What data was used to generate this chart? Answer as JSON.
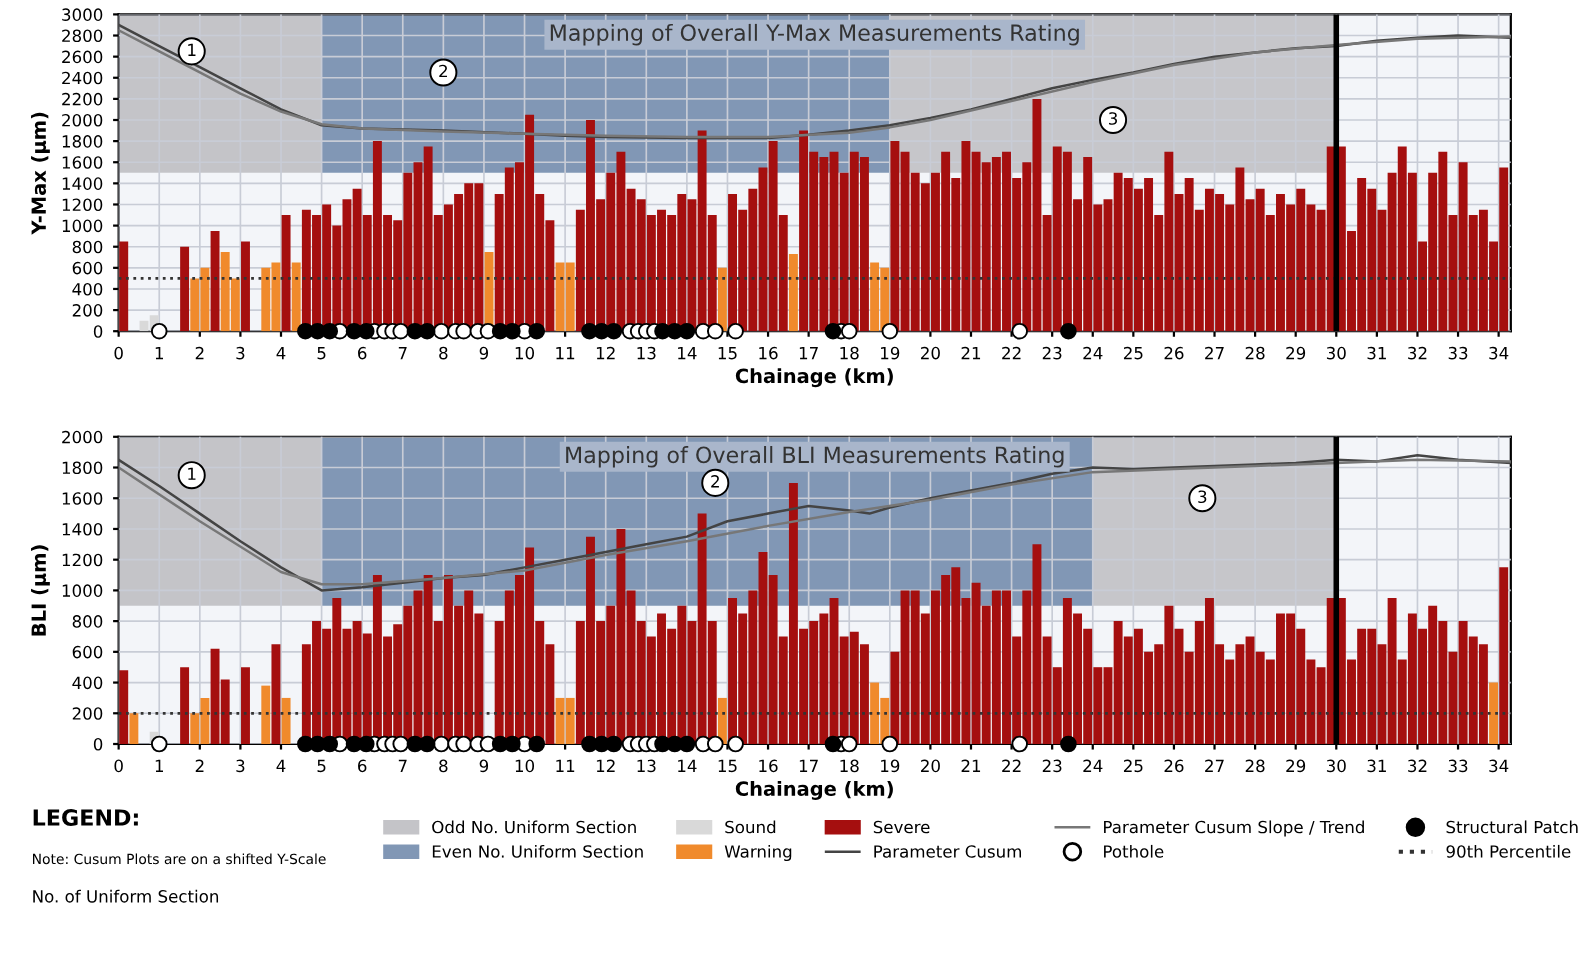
{
  "chart_data": [
    {
      "type": "bar",
      "title": "Mapping of Overall Y-Max Measurements Rating",
      "xlabel": "Chainage (km)",
      "ylabel": "Y-Max (µm)",
      "xlim": [
        0,
        34.3
      ],
      "xticks": [
        0,
        1,
        2,
        3,
        4,
        5,
        6,
        7,
        8,
        9,
        10,
        11,
        12,
        13,
        14,
        15,
        16,
        17,
        18,
        19,
        20,
        21,
        22,
        23,
        24,
        25,
        26,
        27,
        28,
        29,
        30,
        31,
        32,
        33,
        34
      ],
      "ylim": [
        0,
        3000
      ],
      "yticks": [
        0,
        200,
        400,
        600,
        800,
        1000,
        1200,
        1400,
        1600,
        1800,
        2000,
        2200,
        2400,
        2600,
        2800,
        3000
      ],
      "grid": true,
      "bands": [
        {
          "axis": "x",
          "from": 0,
          "to": 5,
          "color": "#c4c4c8"
        },
        {
          "axis": "x",
          "from": 5,
          "to": 19,
          "color": "#8197b5"
        },
        {
          "axis": "x",
          "from": 19,
          "to": 30,
          "color": "#c6c6ca"
        }
      ],
      "ref_lines": [
        {
          "axis": "y",
          "value": 500,
          "color": "#333333",
          "line_style": "dotted"
        },
        {
          "axis": "x",
          "value": 30,
          "color": "#000000"
        }
      ],
      "annotations": [
        {
          "text": "1",
          "x": 1.8,
          "y": 2650
        },
        {
          "text": "2",
          "x": 8,
          "y": 2450
        },
        {
          "text": "3",
          "x": 24.5,
          "y": 2000
        }
      ],
      "series": [
        {
          "color": "#d9d9d9",
          "x": [
            0.625,
            0.875
          ],
          "values": [
            100,
            150
          ]
        },
        {
          "color": "#f08a2c",
          "x": [
            1.875,
            2.125,
            2.625,
            2.875,
            3.625,
            3.875,
            4.375,
            9.125,
            10.875,
            11.125,
            14.875,
            16.625,
            18.625,
            18.875
          ],
          "values": [
            500,
            600,
            750,
            500,
            600,
            650,
            650,
            750,
            650,
            650,
            600,
            730,
            650,
            600
          ]
        },
        {
          "color": "#a50f0f",
          "x": [
            0.125,
            1.625,
            2.375,
            3.125,
            4.125,
            4.625,
            4.875,
            5.125,
            5.375,
            5.625,
            5.875,
            6.125,
            6.375,
            6.625,
            6.875,
            7.125,
            7.375,
            7.625,
            7.875,
            8.125,
            8.375,
            8.625,
            8.875,
            9.375,
            9.625,
            9.875,
            10.125,
            10.375,
            10.625,
            11.375,
            11.625,
            11.875,
            12.125,
            12.375,
            12.625,
            12.875,
            13.125,
            13.375,
            13.625,
            13.875,
            14.125,
            14.375,
            14.625,
            15.125,
            15.375,
            15.625,
            15.875,
            16.125,
            16.375,
            16.875,
            17.125,
            17.375,
            17.625,
            17.875,
            18.125,
            18.375,
            19.125,
            19.375,
            19.625,
            19.875,
            20.125,
            20.375,
            20.625,
            20.875,
            21.125,
            21.375,
            21.625,
            21.875,
            22.125,
            22.375,
            22.625,
            22.875,
            23.125,
            23.375,
            23.625,
            23.875,
            24.125,
            24.375,
            24.625,
            24.875,
            25.125,
            25.375,
            25.625,
            25.875,
            26.125,
            26.375,
            26.625,
            26.875,
            27.125,
            27.375,
            27.625,
            27.875,
            28.125,
            28.375,
            28.625,
            28.875,
            29.125,
            29.375,
            29.625,
            29.875,
            30.125,
            30.375,
            30.625,
            30.875,
            31.125,
            31.375,
            31.625,
            31.875,
            32.125,
            32.375,
            32.625,
            32.875,
            33.125,
            33.375,
            33.625,
            33.875,
            34.125
          ],
          "values": [
            850,
            800,
            950,
            850,
            1100,
            1150,
            1100,
            1200,
            1000,
            1250,
            1350,
            1100,
            1800,
            1100,
            1050,
            1500,
            1600,
            1750,
            1100,
            1200,
            1300,
            1400,
            1400,
            1300,
            1550,
            1600,
            2050,
            1300,
            1050,
            1150,
            2000,
            1250,
            1500,
            1700,
            1350,
            1250,
            1100,
            1150,
            1100,
            1300,
            1250,
            1900,
            1100,
            1300,
            1150,
            1350,
            1550,
            1800,
            1100,
            1900,
            1700,
            1650,
            1700,
            1500,
            1700,
            1650,
            1800,
            1700,
            1500,
            1400,
            1500,
            1700,
            1450,
            1800,
            1700,
            1600,
            1650,
            1700,
            1450,
            1600,
            2200,
            1100,
            1750,
            1700,
            1250,
            1650,
            1200,
            1250,
            1500,
            1450,
            1350,
            1450,
            1100,
            1700,
            1300,
            1450,
            1150,
            1350,
            1300,
            1200,
            1550,
            1250,
            1350,
            1100,
            1300,
            1200,
            1350,
            1200,
            1150,
            1750,
            1750,
            950,
            1450,
            1350,
            1150,
            1500,
            1750,
            1500,
            850,
            1500,
            1700,
            1100,
            1600,
            1100,
            1150,
            850,
            1550
          ]
        },
        {
          "type": "line",
          "color": "#444444",
          "x": [
            0,
            1,
            2,
            3,
            4,
            5,
            6,
            8,
            10,
            11,
            12,
            14,
            16,
            17,
            18,
            19,
            20,
            21,
            22,
            23,
            24,
            25,
            26,
            27,
            28,
            29,
            30,
            31,
            32,
            33,
            34.3
          ],
          "values": [
            2900,
            2700,
            2500,
            2300,
            2100,
            1950,
            1920,
            1900,
            1870,
            1850,
            1840,
            1830,
            1830,
            1860,
            1900,
            1950,
            2020,
            2100,
            2200,
            2300,
            2380,
            2450,
            2530,
            2600,
            2640,
            2680,
            2700,
            2750,
            2780,
            2800,
            2780
          ]
        },
        {
          "type": "line",
          "color": "#777777",
          "x": [
            0,
            1,
            2,
            3,
            4,
            5,
            6,
            8,
            10,
            12,
            14,
            16,
            18,
            19,
            20,
            22,
            24,
            26,
            28,
            30,
            32,
            34.3
          ],
          "values": [
            2850,
            2650,
            2450,
            2250,
            2080,
            1960,
            1920,
            1890,
            1870,
            1850,
            1840,
            1840,
            1880,
            1930,
            2000,
            2180,
            2360,
            2520,
            2640,
            2710,
            2770,
            2790
          ]
        },
        {
          "type": "scatter",
          "color": "#ffffff",
          "marker": "circle",
          "x": [
            1.0,
            5.45,
            6.3,
            6.55,
            6.75,
            6.95,
            7.95,
            8.3,
            8.5,
            8.85,
            9.1,
            10.0,
            12.6,
            12.8,
            13.0,
            13.2,
            14.4,
            14.7,
            15.2,
            17.8,
            18.0,
            19.0,
            22.2
          ],
          "values": [
            0,
            0,
            0,
            0,
            0,
            0,
            0,
            0,
            0,
            0,
            0,
            0,
            0,
            0,
            0,
            0,
            0,
            0,
            0,
            0,
            0,
            0,
            0
          ]
        },
        {
          "type": "scatter",
          "color": "#000000",
          "marker": "circle",
          "x": [
            4.6,
            4.9,
            5.2,
            5.8,
            6.1,
            7.3,
            7.6,
            9.4,
            9.7,
            10.3,
            11.6,
            11.9,
            12.2,
            13.4,
            13.7,
            14.0,
            17.6,
            23.4
          ],
          "values": [
            0,
            0,
            0,
            0,
            0,
            0,
            0,
            0,
            0,
            0,
            0,
            0,
            0,
            0,
            0,
            0,
            0,
            0
          ]
        }
      ]
    },
    {
      "type": "bar",
      "title": "Mapping of Overall BLI Measurements Rating",
      "xlabel": "Chainage (km)",
      "ylabel": "BLI (µm)",
      "xlim": [
        0,
        34.3
      ],
      "xticks": [
        0,
        1,
        2,
        3,
        4,
        5,
        6,
        7,
        8,
        9,
        10,
        11,
        12,
        13,
        14,
        15,
        16,
        17,
        18,
        19,
        20,
        21,
        22,
        23,
        24,
        25,
        26,
        27,
        28,
        29,
        30,
        31,
        32,
        33,
        34
      ],
      "ylim": [
        0,
        2000
      ],
      "yticks": [
        0,
        200,
        400,
        600,
        800,
        1000,
        1200,
        1400,
        1600,
        1800,
        2000
      ],
      "grid": true,
      "legend": "bottom",
      "bands": [
        {
          "axis": "x",
          "from": 0,
          "to": 5,
          "color": "#c4c4c8",
          "label": "Odd No. Uniform Section"
        },
        {
          "axis": "x",
          "from": 5,
          "to": 24,
          "color": "#8197b5",
          "label": "Even No. Uniform Section"
        },
        {
          "axis": "x",
          "from": 24,
          "to": 30,
          "color": "#c6c6ca"
        }
      ],
      "ref_lines": [
        {
          "axis": "y",
          "value": 200,
          "color": "#333333",
          "line_style": "dotted",
          "label": "90th Percentile"
        },
        {
          "axis": "x",
          "value": 30,
          "color": "#000000"
        }
      ],
      "annotations": [
        {
          "text": "1",
          "x": 1.8,
          "y": 1750
        },
        {
          "text": "2",
          "x": 14.7,
          "y": 1700
        },
        {
          "text": "3",
          "x": 26.7,
          "y": 1600
        },
        "LEGEND:",
        "Note: Cusum Plots are on a shifted Y-Scale",
        "No. of Uniform Section"
      ],
      "series": [
        {
          "name": "Sound",
          "color": "#d9d9d9",
          "x": [
            0.875
          ],
          "values": [
            80
          ]
        },
        {
          "name": "Warning",
          "color": "#f08a2c",
          "x": [
            0.375,
            1.875,
            2.125,
            3.625,
            4.125,
            10.875,
            11.125,
            14.875,
            18.625,
            18.875,
            33.875
          ],
          "values": [
            200,
            200,
            300,
            380,
            300,
            300,
            300,
            300,
            400,
            300,
            400
          ]
        },
        {
          "name": "Severe",
          "color": "#a50f0f",
          "x": [
            0.125,
            1.625,
            2.375,
            2.625,
            3.125,
            3.875,
            4.625,
            4.875,
            5.125,
            5.375,
            5.625,
            5.875,
            6.125,
            6.375,
            6.625,
            6.875,
            7.125,
            7.375,
            7.625,
            7.875,
            8.125,
            8.375,
            8.625,
            8.875,
            9.375,
            9.625,
            9.875,
            10.125,
            10.375,
            10.625,
            11.375,
            11.625,
            11.875,
            12.125,
            12.375,
            12.625,
            12.875,
            13.125,
            13.375,
            13.625,
            13.875,
            14.125,
            14.375,
            14.625,
            15.125,
            15.375,
            15.625,
            15.875,
            16.125,
            16.375,
            16.625,
            16.875,
            17.125,
            17.375,
            17.625,
            17.875,
            18.125,
            18.375,
            19.125,
            19.375,
            19.625,
            19.875,
            20.125,
            20.375,
            20.625,
            20.875,
            21.125,
            21.375,
            21.625,
            21.875,
            22.125,
            22.375,
            22.625,
            22.875,
            23.125,
            23.375,
            23.625,
            23.875,
            24.125,
            24.375,
            24.625,
            24.875,
            25.125,
            25.375,
            25.625,
            25.875,
            26.125,
            26.375,
            26.625,
            26.875,
            27.125,
            27.375,
            27.625,
            27.875,
            28.125,
            28.375,
            28.625,
            28.875,
            29.125,
            29.375,
            29.625,
            29.875,
            30.125,
            30.375,
            30.625,
            30.875,
            31.125,
            31.375,
            31.625,
            31.875,
            32.125,
            32.375,
            32.625,
            32.875,
            33.125,
            33.375,
            33.625,
            34.125
          ],
          "values": [
            480,
            500,
            620,
            420,
            500,
            650,
            650,
            800,
            750,
            950,
            750,
            800,
            720,
            1100,
            700,
            780,
            900,
            1000,
            1100,
            800,
            1100,
            900,
            1000,
            850,
            800,
            1000,
            1100,
            1280,
            800,
            650,
            800,
            1350,
            800,
            900,
            1400,
            1000,
            800,
            700,
            850,
            750,
            900,
            800,
            1500,
            800,
            950,
            850,
            1000,
            1250,
            1100,
            700,
            1700,
            750,
            800,
            850,
            950,
            700,
            730,
            650,
            600,
            1000,
            1000,
            850,
            1000,
            1100,
            1150,
            950,
            1050,
            900,
            1000,
            1000,
            700,
            1000,
            1300,
            700,
            500,
            950,
            850,
            750,
            500,
            500,
            800,
            700,
            750,
            600,
            650,
            900,
            750,
            600,
            800,
            950,
            650,
            550,
            650,
            700,
            600,
            550,
            850,
            850,
            750,
            550,
            500,
            950,
            950,
            550,
            750,
            750,
            650,
            950,
            550,
            850,
            750,
            900,
            800,
            600,
            800,
            700,
            650,
            1150
          ]
        },
        {
          "type": "line",
          "name": "Parameter Cusum",
          "color": "#444444",
          "x": [
            0,
            1,
            2,
            3,
            4,
            5,
            6,
            7,
            8,
            9,
            10,
            11,
            12,
            13,
            14,
            15,
            16,
            17,
            18,
            18.5,
            19,
            20,
            21,
            22,
            23,
            24,
            25,
            26,
            27,
            28,
            29,
            30,
            31,
            32,
            33,
            34.3
          ],
          "values": [
            1850,
            1680,
            1500,
            1320,
            1150,
            1000,
            1020,
            1050,
            1080,
            1100,
            1150,
            1200,
            1250,
            1300,
            1350,
            1450,
            1500,
            1550,
            1520,
            1500,
            1540,
            1600,
            1650,
            1700,
            1760,
            1800,
            1790,
            1800,
            1810,
            1820,
            1830,
            1850,
            1840,
            1880,
            1850,
            1830
          ]
        },
        {
          "type": "line",
          "name": "Parameter Cusum Slope / Trend",
          "color": "#777777",
          "x": [
            0,
            2,
            4,
            5,
            6,
            8,
            10,
            12,
            14,
            16,
            18,
            20,
            22,
            24,
            26,
            28,
            30,
            32,
            34.3
          ],
          "values": [
            1800,
            1450,
            1120,
            1040,
            1040,
            1080,
            1130,
            1230,
            1320,
            1420,
            1510,
            1590,
            1690,
            1770,
            1790,
            1810,
            1830,
            1850,
            1840
          ]
        },
        {
          "type": "scatter",
          "name": "Pothole",
          "color": "#ffffff",
          "marker": "circle",
          "x": [
            1.0,
            5.45,
            6.3,
            6.55,
            6.75,
            6.95,
            7.95,
            8.3,
            8.5,
            8.85,
            9.1,
            10.0,
            12.6,
            12.8,
            13.0,
            13.2,
            14.4,
            14.7,
            15.2,
            17.8,
            18.0,
            19.0,
            22.2
          ],
          "values": [
            0,
            0,
            0,
            0,
            0,
            0,
            0,
            0,
            0,
            0,
            0,
            0,
            0,
            0,
            0,
            0,
            0,
            0,
            0,
            0,
            0,
            0,
            0
          ]
        },
        {
          "type": "scatter",
          "name": "Structural Patch",
          "color": "#000000",
          "marker": "circle",
          "x": [
            4.6,
            4.9,
            5.2,
            5.8,
            6.1,
            7.3,
            7.6,
            9.4,
            9.7,
            10.3,
            11.6,
            11.9,
            12.2,
            13.4,
            13.7,
            14.0,
            17.6,
            23.4
          ],
          "values": [
            0,
            0,
            0,
            0,
            0,
            0,
            0,
            0,
            0,
            0,
            0,
            0,
            0,
            0,
            0,
            0,
            0,
            0
          ]
        }
      ]
    }
  ]
}
